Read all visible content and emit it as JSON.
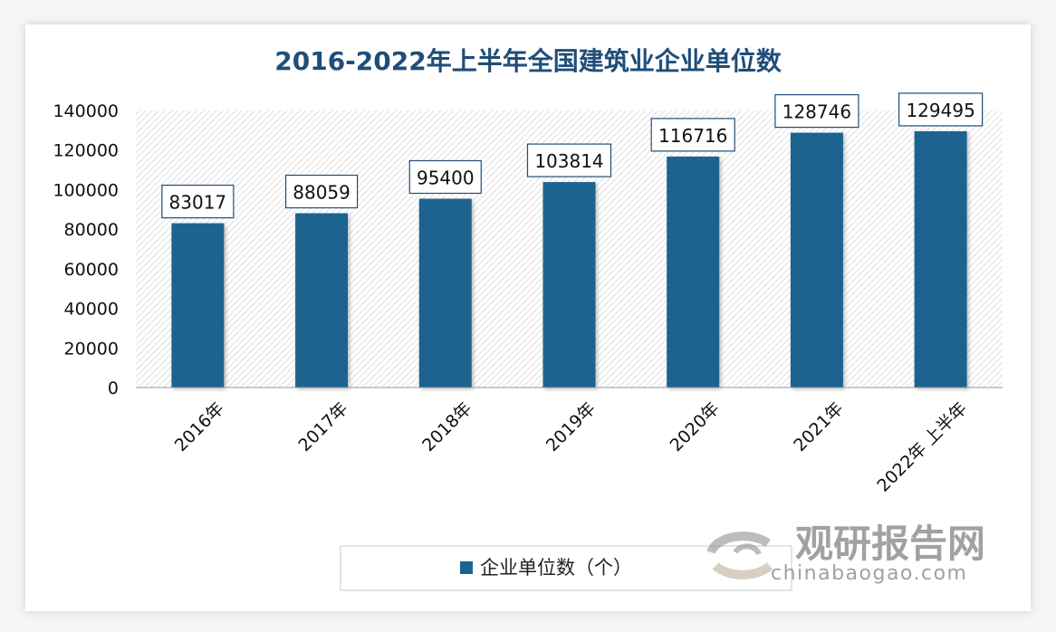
{
  "chart_data": {
    "type": "bar",
    "title": "2016-2022年上半年全国建筑业企业单位数",
    "categories": [
      "2016年",
      "2017年",
      "2018年",
      "2019年",
      "2020年",
      "2021年",
      "2022年 上半年"
    ],
    "series": [
      {
        "name": "企业单位数（个）",
        "values": [
          83017,
          88059,
          95400,
          103814,
          116716,
          128746,
          129495
        ]
      }
    ],
    "data_labels": [
      "83017",
      "88059",
      "95400",
      "103814",
      "116716",
      "128746",
      "129495"
    ],
    "y_ticks": [
      "0",
      "20000",
      "40000",
      "60000",
      "80000",
      "100000",
      "120000",
      "140000"
    ],
    "ylim": [
      0,
      140000
    ],
    "xlabel": "",
    "ylabel": "",
    "grid": false,
    "plot_background": "diagonal-hatch",
    "legend_position": "bottom",
    "bar_color": "#1a6490",
    "title_color": "#1f4e79"
  },
  "watermark": {
    "text": "观研报告网",
    "url_text": "chinabaogao.com"
  }
}
